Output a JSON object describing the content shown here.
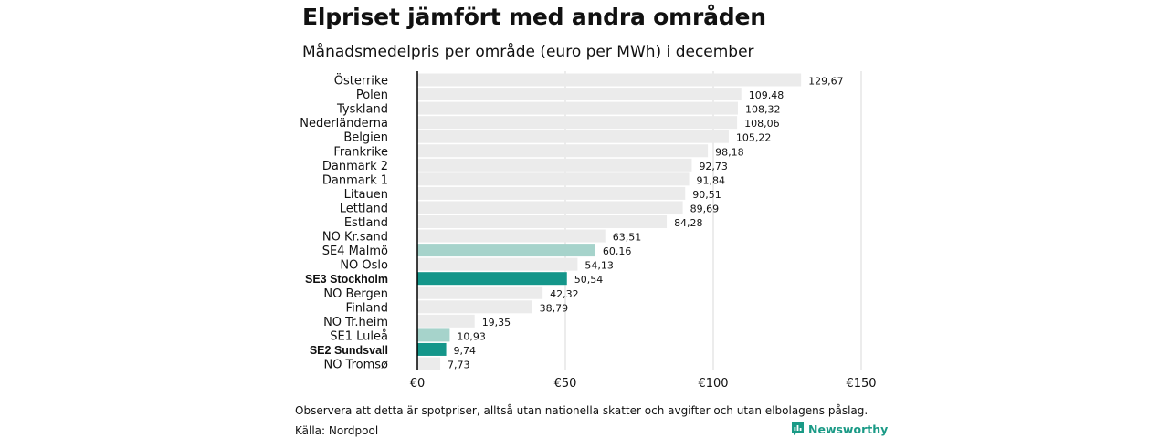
{
  "title": "Elpriset jämfört med andra områden",
  "subtitle": "Månadsmedelpris per område (euro per MWh) i december",
  "note": "Observera att detta är spotpriser, alltså utan nationella skatter och avgifter och utan elbolagens påslag.",
  "source": "Källa: Nordpool",
  "brand": {
    "name": "Newsworthy",
    "icon": "newsworthy-logo-icon"
  },
  "colors": {
    "default": "#ebebeb",
    "light_teal": "#a6d3cb",
    "teal": "#14968a",
    "grid": "#d9d9d9",
    "axis": "#000000"
  },
  "chart_data": {
    "type": "bar",
    "orientation": "horizontal",
    "categories": [
      "Österrike",
      "Polen",
      "Tyskland",
      "Nederländerna",
      "Belgien",
      "Frankrike",
      "Danmark  2",
      "Danmark  1",
      "Litauen",
      "Lettland",
      "Estland",
      "NO Kr.sand",
      "SE4  Malmö",
      "NO Oslo",
      "SE3 Stockholm",
      "NO Bergen",
      "Finland",
      "NO Tr.heim",
      "SE1  Luleå",
      "SE2 Sundsvall",
      "NO Tromsø"
    ],
    "values": [
      129.67,
      109.48,
      108.32,
      108.06,
      105.22,
      98.18,
      92.73,
      91.84,
      90.51,
      89.69,
      84.28,
      63.51,
      60.16,
      54.13,
      50.54,
      42.32,
      38.79,
      19.35,
      10.93,
      9.74,
      7.73
    ],
    "value_labels": [
      "129,67",
      "109,48",
      "108,32",
      "108,06",
      "105,22",
      "98,18",
      "92,73",
      "91,84",
      "90,51",
      "89,69",
      "84,28",
      "63,51",
      "60,16",
      "54,13",
      "50,54",
      "42,32",
      "38,79",
      "19,35",
      "10,93",
      "9,74",
      "7,73"
    ],
    "highlight": [
      "default",
      "default",
      "default",
      "default",
      "default",
      "default",
      "default",
      "default",
      "default",
      "default",
      "default",
      "default",
      "light",
      "default",
      "strong",
      "default",
      "default",
      "default",
      "light",
      "strong",
      "default"
    ],
    "bold_labels": [
      "SE3 Stockholm",
      "SE2 Sundsvall"
    ],
    "xlim": [
      0,
      150
    ],
    "x_ticks": [
      0,
      50,
      100,
      150
    ],
    "x_tick_labels": [
      "€0",
      "€50",
      "€100",
      "€150"
    ],
    "grid": true
  }
}
